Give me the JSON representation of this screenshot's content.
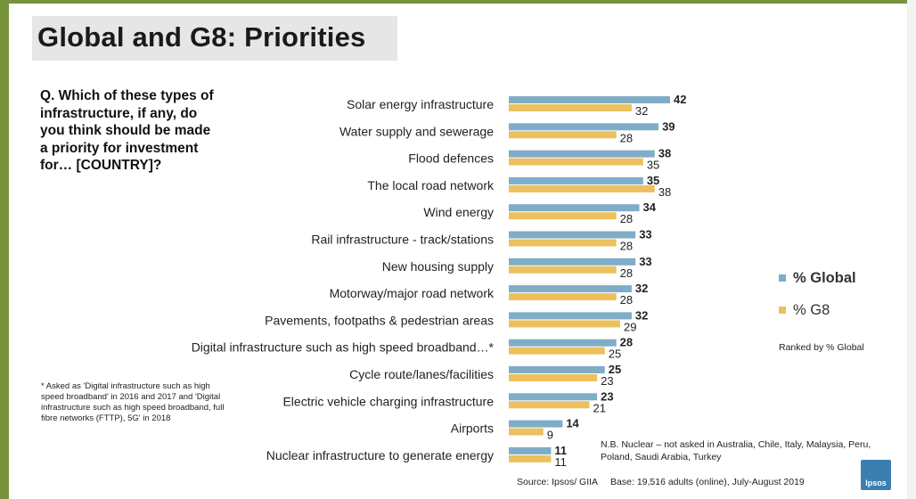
{
  "title": "Global and G8: Priorities",
  "question": "Q. Which of these types of infrastructure, if any, do you think should be made a priority for investment for… [COUNTRY]?",
  "footnote": "* Asked as 'Digital infrastructure such as high speed broadband' in 2016 and 2017 and 'Digital infrastructure such as high speed broadband, full fibre networks (FTTP), 5G' in 2018",
  "legend": {
    "global": "% Global",
    "g8": "% G8",
    "ranked_note": "Ranked by % Global"
  },
  "nb_note": "N.B. Nuclear – not asked in Australia, Chile, Italy, Malaysia, Peru, Poland, Saudi Arabia, Turkey",
  "source": "Source: Ipsos/ GIIA     Base: 19,516 adults (online), July-August 2019",
  "logo_text": "Ipsos",
  "colors": {
    "global": "#7fadc7",
    "g8": "#ecc05f",
    "background": "#76923c"
  },
  "chart_data": {
    "type": "bar",
    "orientation": "horizontal",
    "categories": [
      "Solar energy infrastructure",
      "Water supply and sewerage",
      "Flood defences",
      "The local road network",
      "Wind energy",
      "Rail infrastructure - track/stations",
      "New housing supply",
      "Motorway/major road network",
      "Pavements, footpaths & pedestrian areas",
      "Digital infrastructure such as high speed broadband…*",
      "Cycle route/lanes/facilities",
      "Electric vehicle charging infrastructure",
      "Airports",
      "Nuclear infrastructure to generate energy"
    ],
    "series": [
      {
        "name": "% Global",
        "values": [
          42,
          39,
          38,
          35,
          34,
          33,
          33,
          32,
          32,
          28,
          25,
          23,
          14,
          11
        ]
      },
      {
        "name": "% G8",
        "values": [
          32,
          28,
          35,
          38,
          28,
          28,
          28,
          28,
          29,
          25,
          23,
          21,
          9,
          11
        ]
      }
    ],
    "xlim": [
      0,
      42
    ],
    "grid": false,
    "legend_position": "right"
  }
}
